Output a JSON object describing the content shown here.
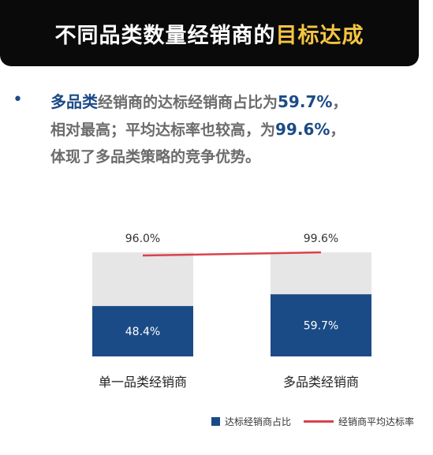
{
  "header": {
    "title_main": "不同品类数量经销商的",
    "title_highlight": "目标达成"
  },
  "summary": {
    "p1": "多品类",
    "p2": "经销商的达标经销商占比为",
    "p3": "59.7%",
    "p4": "，",
    "p5": "相对最高；平均达标率也较高，为",
    "p6": "99.6%",
    "p7": "，",
    "p8": "体现了多品类策略的竞争优势。"
  },
  "colors": {
    "bar": "#1b4b86",
    "bar_bg": "#e6e6e6",
    "line": "#d9424b"
  },
  "chart_data": {
    "type": "bar",
    "categories": [
      "单一品类经销商",
      "多品类经销商"
    ],
    "series": [
      {
        "name": "达标经销商占比",
        "values": [
          48.4,
          59.7
        ],
        "labels": [
          "48.4%",
          "59.7%"
        ]
      },
      {
        "name": "经销商平均达标率",
        "values": [
          96.0,
          99.6
        ],
        "labels": [
          "96.0%",
          "99.6%"
        ]
      }
    ],
    "ylim": [
      0,
      100
    ],
    "legend": "bottom-right"
  }
}
